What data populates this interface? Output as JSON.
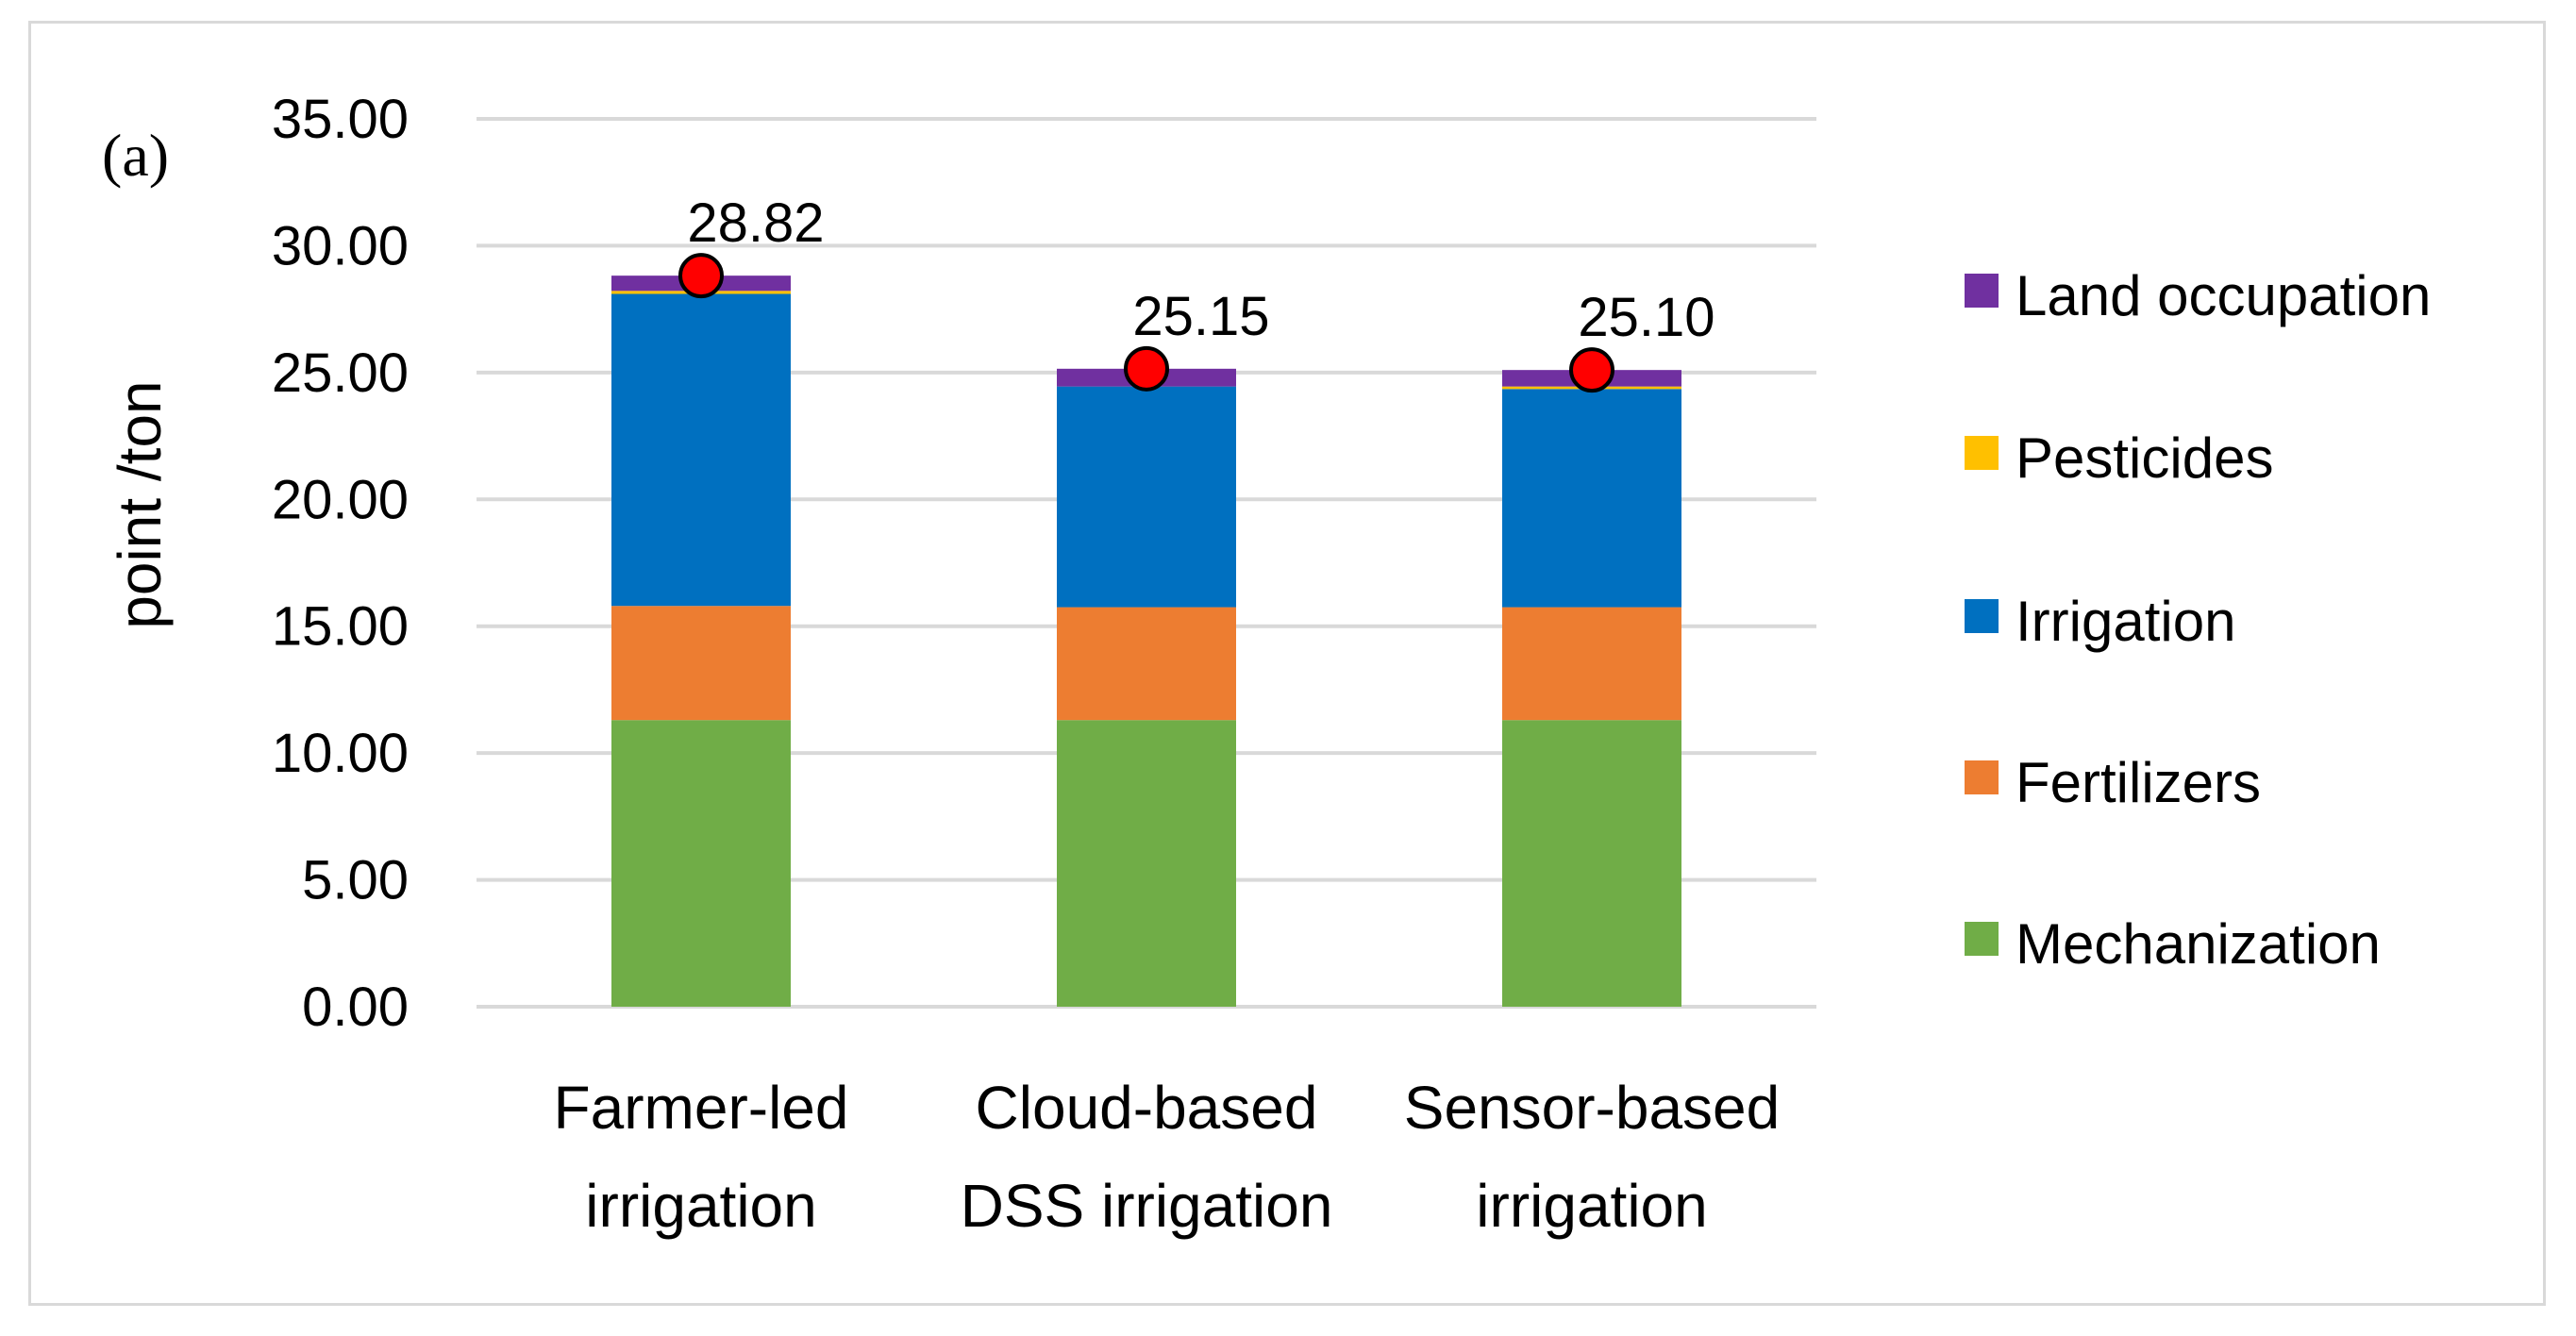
{
  "panel_label": "(a)",
  "chart_data": {
    "type": "bar",
    "stacked": true,
    "title": "",
    "xlabel": "",
    "ylabel": "point /ton",
    "ylim": [
      0,
      35
    ],
    "yticks": [
      "0.00",
      "5.00",
      "10.00",
      "15.00",
      "20.00",
      "25.00",
      "30.00",
      "35.00"
    ],
    "ytick_values": [
      0,
      5,
      10,
      15,
      20,
      25,
      30,
      35
    ],
    "grid": true,
    "legend_position": "right",
    "categories": [
      [
        "Farmer-led",
        "irrigation"
      ],
      [
        "Cloud-based",
        "DSS irrigation"
      ],
      [
        "Sensor-based",
        "irrigation"
      ]
    ],
    "series": [
      {
        "name": "Mechanization",
        "color": "#70ad47",
        "values": [
          11.3,
          11.3,
          11.3
        ]
      },
      {
        "name": "Fertilizers",
        "color": "#ed7d31",
        "values": [
          4.5,
          4.45,
          4.45
        ]
      },
      {
        "name": "Irrigation",
        "color": "#0070c0",
        "values": [
          12.3,
          8.7,
          8.6
        ]
      },
      {
        "name": "Pesticides",
        "color": "#ffc000",
        "values": [
          0.12,
          0.0,
          0.1
        ]
      },
      {
        "name": "Land occupation",
        "color": "#7030a0",
        "values": [
          0.6,
          0.7,
          0.65
        ]
      }
    ],
    "legend_order": [
      "Land occupation",
      "Pesticides",
      "Irrigation",
      "Fertilizers",
      "Mechanization"
    ],
    "totals": {
      "values": [
        28.82,
        25.15,
        25.1
      ],
      "labels": [
        "28.82",
        "25.15",
        "25.10"
      ],
      "marker_color": "#ff0000"
    }
  }
}
